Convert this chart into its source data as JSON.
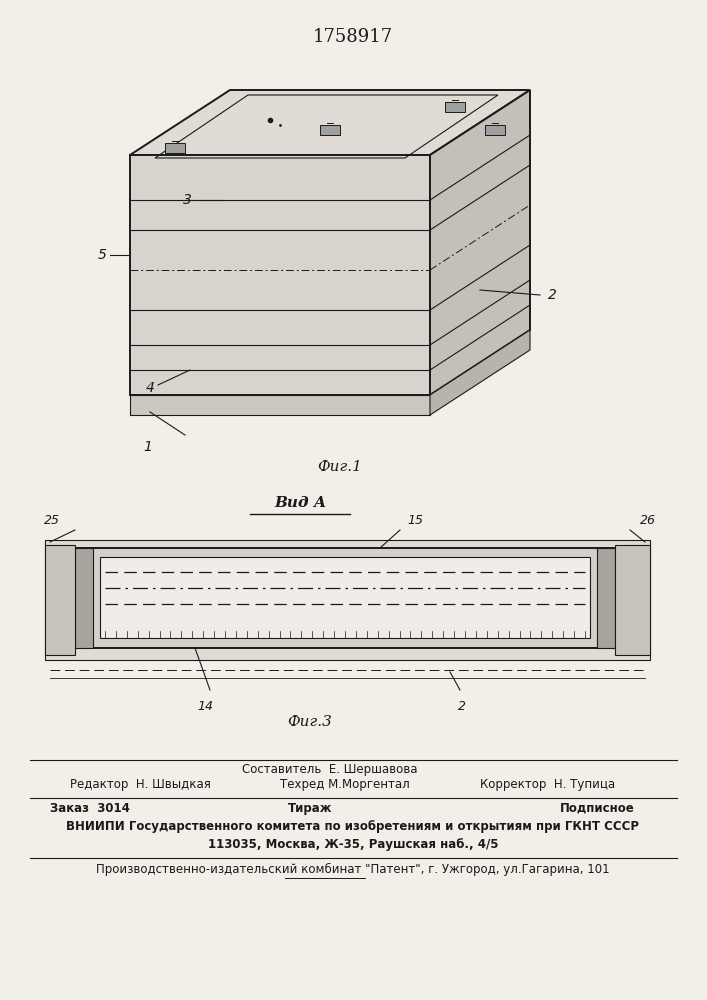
{
  "title": "1758917",
  "title_fontsize": 12,
  "fig1_caption": "Фиг.1",
  "fig3_caption": "Фиг.3",
  "vid_a_label": "Вид А",
  "bg_color": "#f2efe9",
  "line_color": "#1a1a1a",
  "editor_line": "Редактор  Н. Швыдкая",
  "compiler_label": "Составитель  Е. Шершавова",
  "techred_label": "Техред М.Моргентал",
  "corrector_label": "Корректор  Н. Тупица",
  "order_text": "Заказ  3014",
  "tirazh_text": "Тираж",
  "podpisnoe_text": "Подписное",
  "vniiipi_line1": "ВНИИПИ Государственного комитета по изобретениям и открытиям при ГКНТ СССР",
  "vniiipi_line2": "113035, Москва, Ж-35, Раушская наб., 4/5",
  "factory_line": "Производственно-издательский комбинат \"Патент\", г. Ужгород, ул.Гагарина, 101"
}
